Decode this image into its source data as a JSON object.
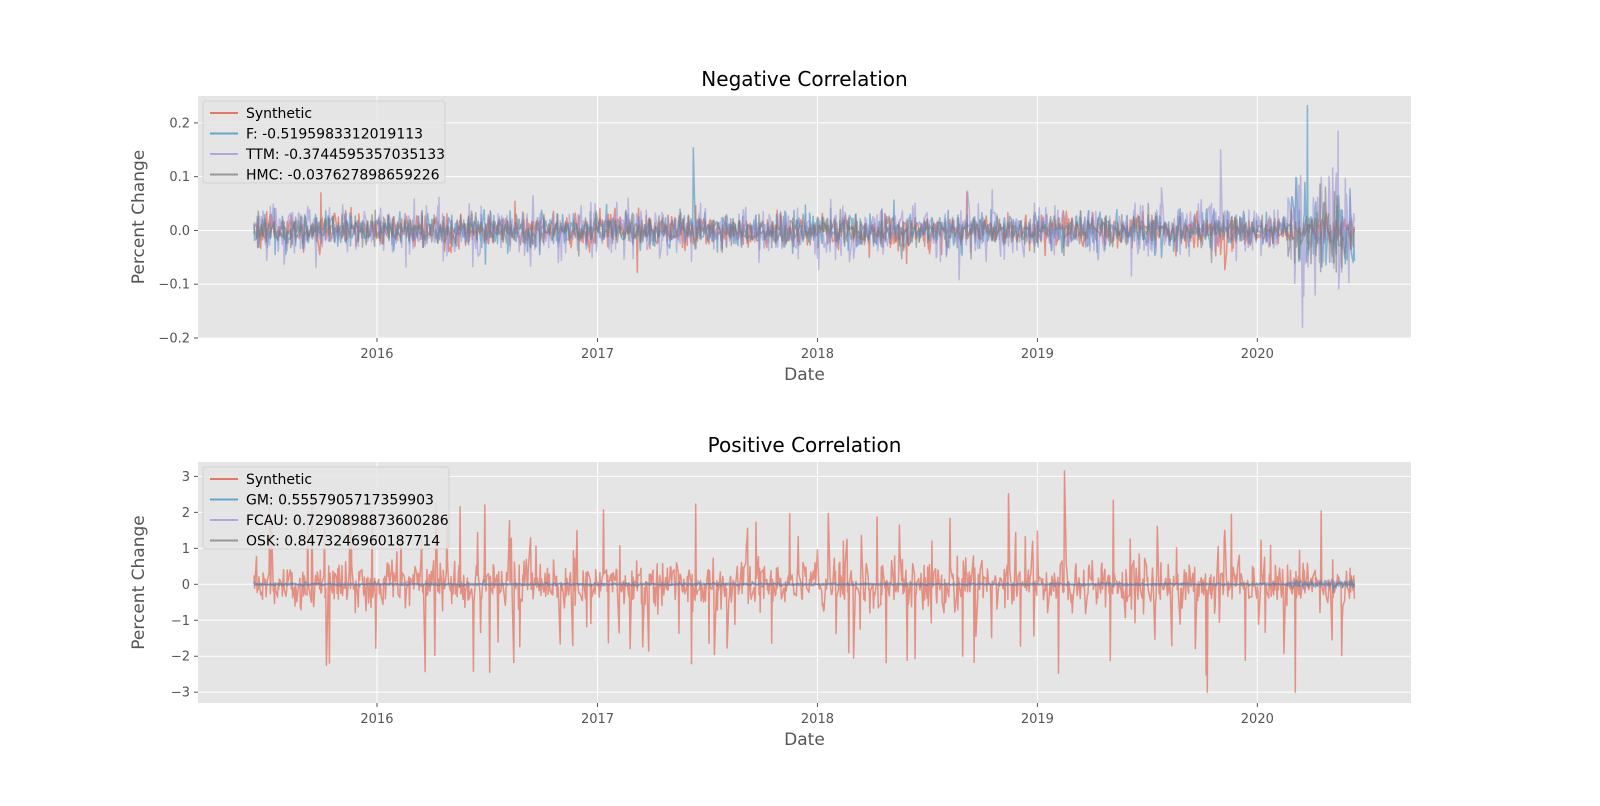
{
  "chart_data": [
    {
      "type": "line",
      "title": "Negative Correlation",
      "xlabel": "Date",
      "ylabel": "Percent Change",
      "x_range": [
        "2015-06-11",
        "2020-06-10"
      ],
      "xlim": [
        "2015-03-10",
        "2020-09-12"
      ],
      "ylim": [
        -0.2,
        0.25
      ],
      "yticks": [
        -0.2,
        -0.1,
        0.0,
        0.1,
        0.2
      ],
      "ytick_labels": [
        "−0.2",
        "−0.1",
        "0.0",
        "0.1",
        "0.2"
      ],
      "xticks": [
        "2016-01-01",
        "2017-01-01",
        "2018-01-01",
        "2019-01-01",
        "2020-01-01"
      ],
      "xtick_labels": [
        "2016",
        "2017",
        "2018",
        "2019",
        "2020"
      ],
      "grid": true,
      "legend_position": "top-left",
      "series": [
        {
          "name": "Synthetic",
          "color": "#E24A33",
          "amplitude": 0.015,
          "volatility_2020": 0.015
        },
        {
          "name": "F: -0.5195983312019113",
          "color": "#348ABD",
          "amplitude": 0.016,
          "volatility_2020": 0.045
        },
        {
          "name": "TTM: -0.3744595357035133",
          "color": "#988ED5",
          "amplitude": 0.022,
          "volatility_2020": 0.06
        },
        {
          "name": "HMC: -0.037627898659226",
          "color": "#777777",
          "amplitude": 0.014,
          "volatility_2020": 0.035
        }
      ],
      "annotations": {
        "peak_F": {
          "date": "2020-03-24",
          "value": 0.232
        },
        "trough_TTM": {
          "date": "2020-03-16",
          "value": -0.18
        },
        "peak_TTM": {
          "date": "2019-11-01",
          "value": 0.15
        }
      }
    },
    {
      "type": "line",
      "title": "Positive Correlation",
      "xlabel": "Date",
      "ylabel": "Percent Change",
      "x_range": [
        "2015-06-11",
        "2020-06-10"
      ],
      "xlim": [
        "2015-03-10",
        "2020-09-12"
      ],
      "ylim": [
        -3.3,
        3.4
      ],
      "yticks": [
        -3,
        -2,
        -1,
        0,
        1,
        2,
        3
      ],
      "ytick_labels": [
        "−3",
        "−2",
        "−1",
        "0",
        "1",
        "2",
        "3"
      ],
      "xticks": [
        "2016-01-01",
        "2017-01-01",
        "2018-01-01",
        "2019-01-01",
        "2020-01-01"
      ],
      "xtick_labels": [
        "2016",
        "2017",
        "2018",
        "2019",
        "2020"
      ],
      "grid": true,
      "legend_position": "top-left",
      "series": [
        {
          "name": "Synthetic",
          "color": "#E24A33",
          "amplitude": 0.6
        },
        {
          "name": "GM: 0.5557905717359903",
          "color": "#348ABD",
          "amplitude": 0.015
        },
        {
          "name": "FCAU: 0.7290898873600286",
          "color": "#988ED5",
          "amplitude": 0.02
        },
        {
          "name": "OSK: 0.8473246960187714",
          "color": "#777777",
          "amplitude": 0.018
        }
      ],
      "annotations": {
        "peak_synthetic": {
          "date": "2019-02-15",
          "value": 3.15
        },
        "trough_synthetic": {
          "date": "2019-10-10",
          "value": -3.0
        },
        "trough_synthetic_2020": {
          "date": "2020-03-04",
          "value": -3.0
        }
      }
    }
  ]
}
